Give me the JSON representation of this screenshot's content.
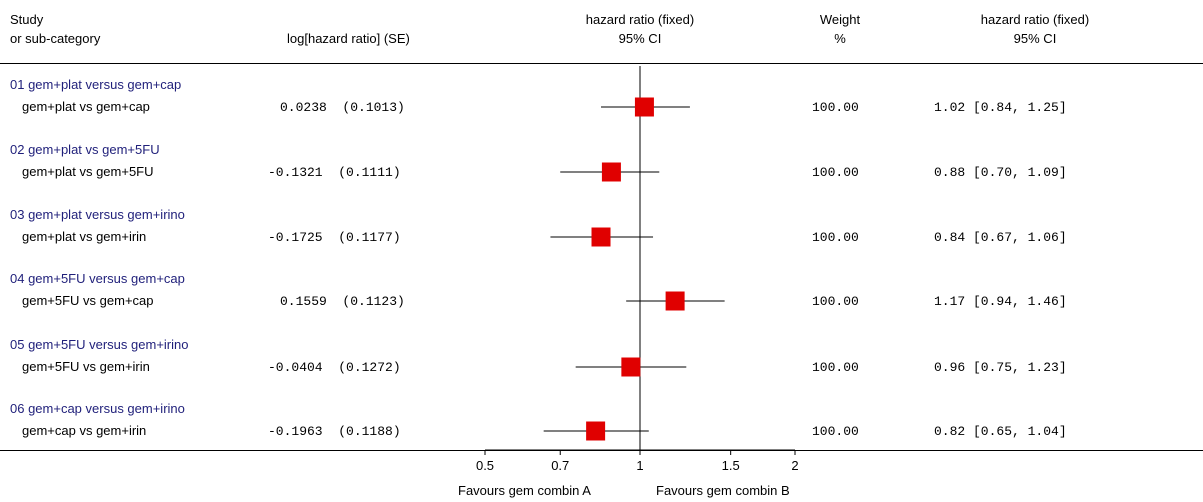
{
  "header": {
    "study_line1": "Study",
    "study_line2": "or sub-category",
    "loghr": "log[hazard ratio] (SE)",
    "hr_plot_line1": "hazard ratio (fixed)",
    "hr_plot_line2": "95% CI",
    "weight_line1": "Weight",
    "weight_line2": "%",
    "hr_text_line1": "hazard ratio (fixed)",
    "hr_text_line2": "95% CI"
  },
  "rows": [
    {
      "group": "01 gem+plat versus gem+cap",
      "sub": "gem+plat vs gem+cap",
      "loghr": "0.0238  (0.1013)",
      "weight": "100.00",
      "ci_text": "1.02 [0.84, 1.25]"
    },
    {
      "group": "02 gem+plat vs gem+5FU",
      "sub": "gem+plat vs gem+5FU",
      "loghr": "-0.1321  (0.1111)",
      "weight": "100.00",
      "ci_text": "0.88 [0.70, 1.09]"
    },
    {
      "group": "03 gem+plat versus gem+irino",
      "sub": "gem+plat vs gem+irin",
      "loghr": "-0.1725  (0.1177)",
      "weight": "100.00",
      "ci_text": "0.84 [0.67, 1.06]"
    },
    {
      "group": "04 gem+5FU versus gem+cap",
      "sub": "gem+5FU vs gem+cap",
      "loghr": "0.1559  (0.1123)",
      "weight": "100.00",
      "ci_text": "1.17 [0.94, 1.46]"
    },
    {
      "group": "05 gem+5FU versus gem+irino",
      "sub": "gem+5FU vs gem+irin",
      "loghr": "-0.0404  (0.1272)",
      "weight": "100.00",
      "ci_text": "0.96 [0.75, 1.23]"
    },
    {
      "group": "06 gem+cap versus gem+irino",
      "sub": "gem+cap vs gem+irin",
      "loghr": "-0.1963  (0.1188)",
      "weight": "100.00",
      "ci_text": "0.82 [0.65, 1.04]"
    }
  ],
  "chart_data": {
    "type": "scatter",
    "x_scale": "log",
    "xlim": [
      0.5,
      2
    ],
    "x_ticks": [
      "0.5",
      "0.7",
      "1",
      "1.5",
      "2"
    ],
    "favours_left": "Favours gem combin A",
    "favours_right": "Favours gem combin B",
    "series": [
      {
        "values": [
          {
            "label": "gem+plat vs gem+cap",
            "hr": 1.02,
            "lower": 0.84,
            "upper": 1.25
          },
          {
            "label": "gem+plat vs gem+5FU",
            "hr": 0.88,
            "lower": 0.7,
            "upper": 1.09
          },
          {
            "label": "gem+plat vs gem+irin",
            "hr": 0.84,
            "lower": 0.67,
            "upper": 1.06
          },
          {
            "label": "gem+5FU vs gem+cap",
            "hr": 1.17,
            "lower": 0.94,
            "upper": 1.46
          },
          {
            "label": "gem+5FU vs gem+irin",
            "hr": 0.96,
            "lower": 0.75,
            "upper": 1.23
          },
          {
            "label": "gem+cap vs gem+irin",
            "hr": 0.82,
            "lower": 0.65,
            "upper": 1.04
          }
        ]
      }
    ],
    "marker_color": "#e00000"
  }
}
